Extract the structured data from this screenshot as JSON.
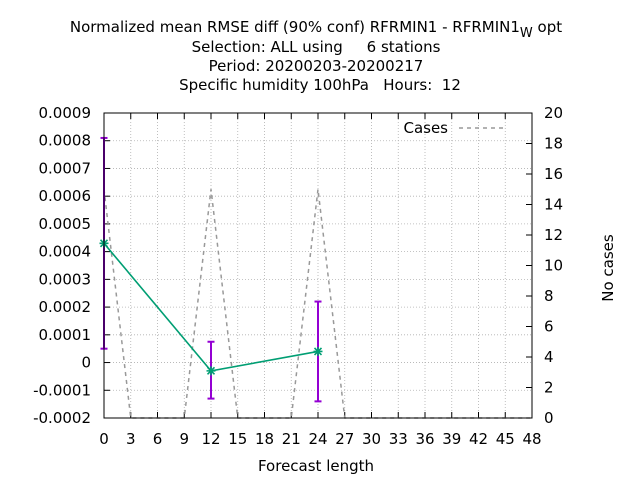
{
  "chart_data": {
    "type": "line",
    "title_lines": [
      "Normalized mean RMSE diff (90% conf) RFRMIN1 - RFRMIN1",
      "Selection: ALL using     6 stations",
      "Period: 20200203-20200217",
      "Specific humidity 100hPa   Hours:  12"
    ],
    "title_subscript": "W",
    "title_suffix": " opt",
    "xlabel": "Forecast length",
    "ylabel": "",
    "y2label": "No cases",
    "xlim": [
      0,
      48
    ],
    "ylim": [
      -0.0002,
      0.0009
    ],
    "y2lim": [
      0,
      20
    ],
    "x_ticks": [
      0,
      3,
      6,
      9,
      12,
      15,
      18,
      21,
      24,
      27,
      30,
      33,
      36,
      39,
      42,
      45,
      48
    ],
    "x_tick_labels": [
      "0",
      "3",
      "6",
      "9",
      "12",
      "15",
      "18",
      "21",
      "24",
      "27",
      "30",
      "33",
      "36",
      "39",
      "42",
      "45",
      "48"
    ],
    "y_ticks": [
      -0.0002,
      -0.0001,
      0,
      0.0001,
      0.0002,
      0.0003,
      0.0004,
      0.0005,
      0.0006,
      0.0007,
      0.0008,
      0.0009
    ],
    "y_tick_labels": [
      "-0.0002",
      "-0.0001",
      "0",
      "0.0001",
      "0.0002",
      "0.0003",
      "0.0004",
      "0.0005",
      "0.0006",
      "0.0007",
      "0.0008",
      "0.0009"
    ],
    "y2_ticks": [
      0,
      2,
      4,
      6,
      8,
      10,
      12,
      14,
      16,
      18,
      20
    ],
    "y2_tick_labels": [
      "0",
      "2",
      "4",
      "6",
      "8",
      "10",
      "12",
      "14",
      "16",
      "18",
      "20"
    ],
    "grid": true,
    "legend_position": "top-right",
    "series": [
      {
        "name": "",
        "color": "#009e73",
        "x": [
          0,
          12,
          24
        ],
        "y": [
          0.00043,
          -3e-05,
          4e-05
        ],
        "error_low": [
          5e-05,
          -0.00013,
          -0.00014
        ],
        "error_high": [
          0.00081,
          7.5e-05,
          0.00022
        ],
        "error_color": "#9400d3"
      },
      {
        "name": "Cases",
        "axis": "y2",
        "color": "#999999",
        "dashed": true,
        "x": [
          0,
          3,
          6,
          9,
          12,
          15,
          18,
          21,
          24,
          27,
          30,
          33,
          36,
          39,
          42,
          45,
          48
        ],
        "y": [
          15,
          0,
          0,
          0,
          15,
          0,
          0,
          0,
          15,
          0,
          0,
          0,
          0,
          0,
          0,
          0,
          0
        ]
      }
    ]
  }
}
